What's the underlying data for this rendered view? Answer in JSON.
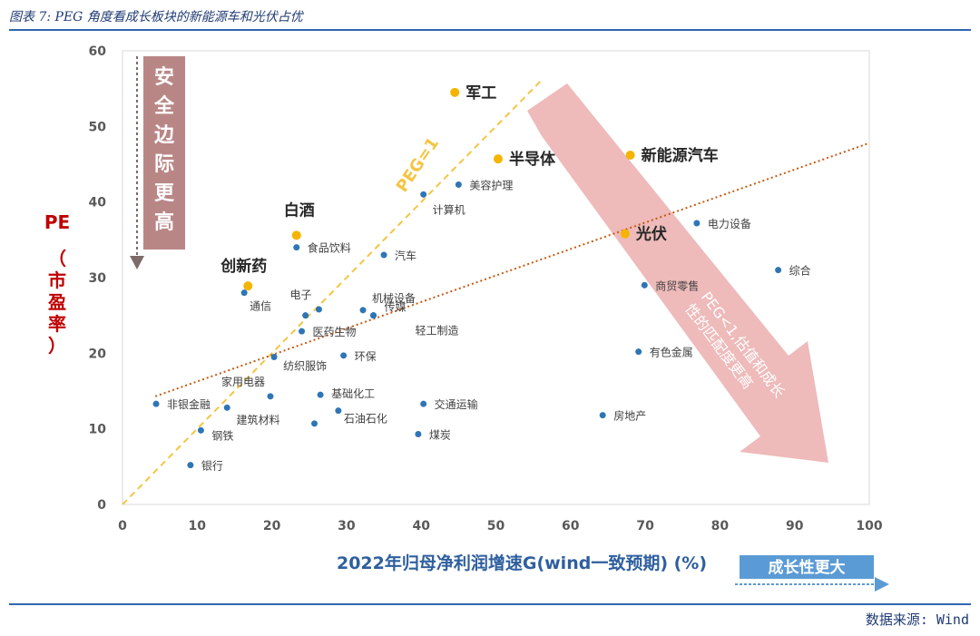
{
  "header": {
    "title": "图表 7: PEG 角度看成长板块的新能源车和光伏占优"
  },
  "footer": {
    "source": "数据来源: Wind"
  },
  "chart_data": {
    "type": "scatter",
    "xlabel": "2022年归母净利润增速G(wind一致预期) (%)",
    "ylabel_main": "PE",
    "ylabel_sub": [
      "（",
      "市",
      "盈",
      "率",
      "）"
    ],
    "xlim": [
      0,
      100
    ],
    "ylim": [
      0,
      60
    ],
    "x_ticks": [
      0,
      10,
      20,
      30,
      40,
      50,
      60,
      70,
      80,
      90,
      100
    ],
    "y_ticks": [
      0,
      10,
      20,
      30,
      40,
      50,
      60
    ],
    "grid": false,
    "colors": {
      "normal": "#2e75b6",
      "highlight": "#f4b400",
      "peg_line": "#f4c542",
      "trend_line": "#c55a11",
      "arrow": "#e8a3a3",
      "safety_box": "#b98686"
    },
    "points": [
      {
        "label": "军工",
        "x": 44.5,
        "y": 54.5,
        "highlight": true
      },
      {
        "label": "半导体",
        "x": 50.3,
        "y": 45.7,
        "highlight": true
      },
      {
        "label": "新能源汽车",
        "x": 68.0,
        "y": 46.2,
        "highlight": true
      },
      {
        "label": "光伏",
        "x": 67.3,
        "y": 35.8,
        "highlight": true
      },
      {
        "label": "白酒",
        "x": 23.3,
        "y": 35.6,
        "highlight": true
      },
      {
        "label": "创新药",
        "x": 16.8,
        "y": 28.9,
        "highlight": true
      },
      {
        "label": "美容护理",
        "x": 45.0,
        "y": 42.3,
        "highlight": false
      },
      {
        "label": "计算机",
        "x": 40.3,
        "y": 41.0,
        "highlight": false
      },
      {
        "label": "电力设备",
        "x": 76.9,
        "y": 37.2,
        "highlight": false
      },
      {
        "label": "食品饮料",
        "x": 23.3,
        "y": 34.0,
        "highlight": false
      },
      {
        "label": "汽车",
        "x": 35.0,
        "y": 33.0,
        "highlight": false
      },
      {
        "label": "综合",
        "x": 87.8,
        "y": 31.0,
        "highlight": false
      },
      {
        "label": "商贸零售",
        "x": 69.9,
        "y": 29.0,
        "highlight": false
      },
      {
        "label": "通信",
        "x": 16.3,
        "y": 28.0,
        "highlight": false
      },
      {
        "label": "电子",
        "x": 26.3,
        "y": 25.8,
        "highlight": false
      },
      {
        "label": "电子",
        "x": 24.5,
        "y": 25.0,
        "highlight": false
      },
      {
        "label": "机械设备",
        "x": 32.2,
        "y": 25.7,
        "highlight": false
      },
      {
        "label": "传媒",
        "x": 33.6,
        "y": 25.0,
        "highlight": false
      },
      {
        "label": "医药生物",
        "x": 24.0,
        "y": 22.9,
        "highlight": false
      },
      {
        "label": "轻工制造",
        "x": 33.6,
        "y": 25.0,
        "highlight": false
      },
      {
        "label": "有色金属",
        "x": 69.1,
        "y": 20.2,
        "highlight": false
      },
      {
        "label": "纺织服饰",
        "x": 20.3,
        "y": 19.5,
        "highlight": false
      },
      {
        "label": "环保",
        "x": 29.6,
        "y": 19.7,
        "highlight": false
      },
      {
        "label": "家用电器",
        "x": 19.8,
        "y": 14.3,
        "highlight": false
      },
      {
        "label": "基础化工",
        "x": 26.5,
        "y": 14.5,
        "highlight": false
      },
      {
        "label": "非银金融",
        "x": 4.5,
        "y": 13.3,
        "highlight": false
      },
      {
        "label": "家用电器",
        "x": 14.0,
        "y": 12.8,
        "highlight": false
      },
      {
        "label": "交通运输",
        "x": 40.3,
        "y": 13.3,
        "highlight": false
      },
      {
        "label": "石油石化",
        "x": 28.9,
        "y": 12.4,
        "highlight": false
      },
      {
        "label": "房地产",
        "x": 64.3,
        "y": 11.8,
        "highlight": false
      },
      {
        "label": "建筑材料",
        "x": 25.7,
        "y": 10.7,
        "highlight": false
      },
      {
        "label": "钢铁",
        "x": 10.5,
        "y": 9.8,
        "highlight": false
      },
      {
        "label": "煤炭",
        "x": 39.6,
        "y": 9.3,
        "highlight": false
      },
      {
        "label": "银行",
        "x": 9.1,
        "y": 5.2,
        "highlight": false
      }
    ],
    "peg_line_label": "PEG=1",
    "trend_line": {
      "from": [
        4.4,
        14.3
      ],
      "to": [
        100,
        47.8
      ]
    },
    "annotations": {
      "safety": [
        "安",
        "全",
        "边",
        "际",
        "更",
        "高"
      ],
      "peg_lt1": [
        "PEG<1,估值和成长",
        "性的匹配度更高"
      ],
      "growth": "成长性更大"
    }
  }
}
